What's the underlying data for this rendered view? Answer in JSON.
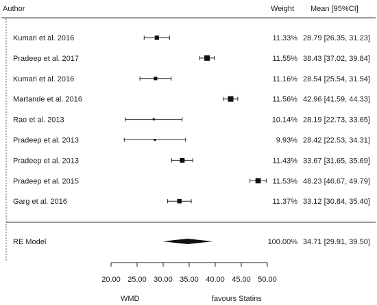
{
  "header": {
    "author_label": "Author",
    "weight_label": "Weight",
    "mean_label": "Mean [95%CI]"
  },
  "chart_data": {
    "type": "forest",
    "xlim": [
      20,
      50
    ],
    "xticks": [
      20,
      25,
      30,
      35,
      40,
      45,
      50
    ],
    "xtick_labels": [
      "20.00",
      "25.00",
      "30.00",
      "35.00",
      "40.00",
      "45.00",
      "50.00"
    ],
    "studies": [
      {
        "author": "Kumari et al. 2016",
        "mean": 28.79,
        "lower": 26.35,
        "upper": 31.23,
        "weight": 11.33,
        "weight_text": "11.33%",
        "ci_text": "28.79 [26.35, 31.23]"
      },
      {
        "author": "Pradeep et al. 2017",
        "mean": 38.43,
        "lower": 37.02,
        "upper": 39.84,
        "weight": 11.55,
        "weight_text": "11.55%",
        "ci_text": "38.43 [37.02, 39.84]"
      },
      {
        "author": "Kumari et al. 2016",
        "mean": 28.54,
        "lower": 25.54,
        "upper": 31.54,
        "weight": 11.16,
        "weight_text": "11.16%",
        "ci_text": "28.54 [25.54, 31.54]"
      },
      {
        "author": "Martande et al. 2016",
        "mean": 42.96,
        "lower": 41.59,
        "upper": 44.33,
        "weight": 11.56,
        "weight_text": "11.56%",
        "ci_text": "42.96 [41.59, 44.33]"
      },
      {
        "author": "Rao et al. 2013",
        "mean": 28.19,
        "lower": 22.73,
        "upper": 33.65,
        "weight": 10.14,
        "weight_text": "10.14%",
        "ci_text": "28.19 [22.73, 33.65]"
      },
      {
        "author": "Pradeep et al. 2013",
        "mean": 28.42,
        "lower": 22.53,
        "upper": 34.31,
        "weight": 9.93,
        "weight_text": "9.93%",
        "ci_text": "28.42 [22.53, 34.31]"
      },
      {
        "author": "Pradeep et al. 2013",
        "mean": 33.67,
        "lower": 31.65,
        "upper": 35.69,
        "weight": 11.43,
        "weight_text": "11.43%",
        "ci_text": "33.67 [31.65, 35.69]"
      },
      {
        "author": "Pradeep et al. 2015",
        "mean": 48.23,
        "lower": 46.67,
        "upper": 49.79,
        "weight": 11.53,
        "weight_text": "11.53%",
        "ci_text": "48.23 [46.67, 49.79]"
      },
      {
        "author": "Garg et al. 2016",
        "mean": 33.12,
        "lower": 30.84,
        "upper": 35.4,
        "weight": 11.37,
        "weight_text": "11.37%",
        "ci_text": "33.12 [30.84, 35.40]"
      }
    ],
    "summary": {
      "label": "RE Model",
      "mean": 34.71,
      "lower": 29.91,
      "upper": 39.5,
      "weight_text": "100.00%",
      "ci_text": "34.71 [29.91, 39.50]"
    },
    "footer_left": "WMD",
    "footer_right": "favours Statins"
  }
}
